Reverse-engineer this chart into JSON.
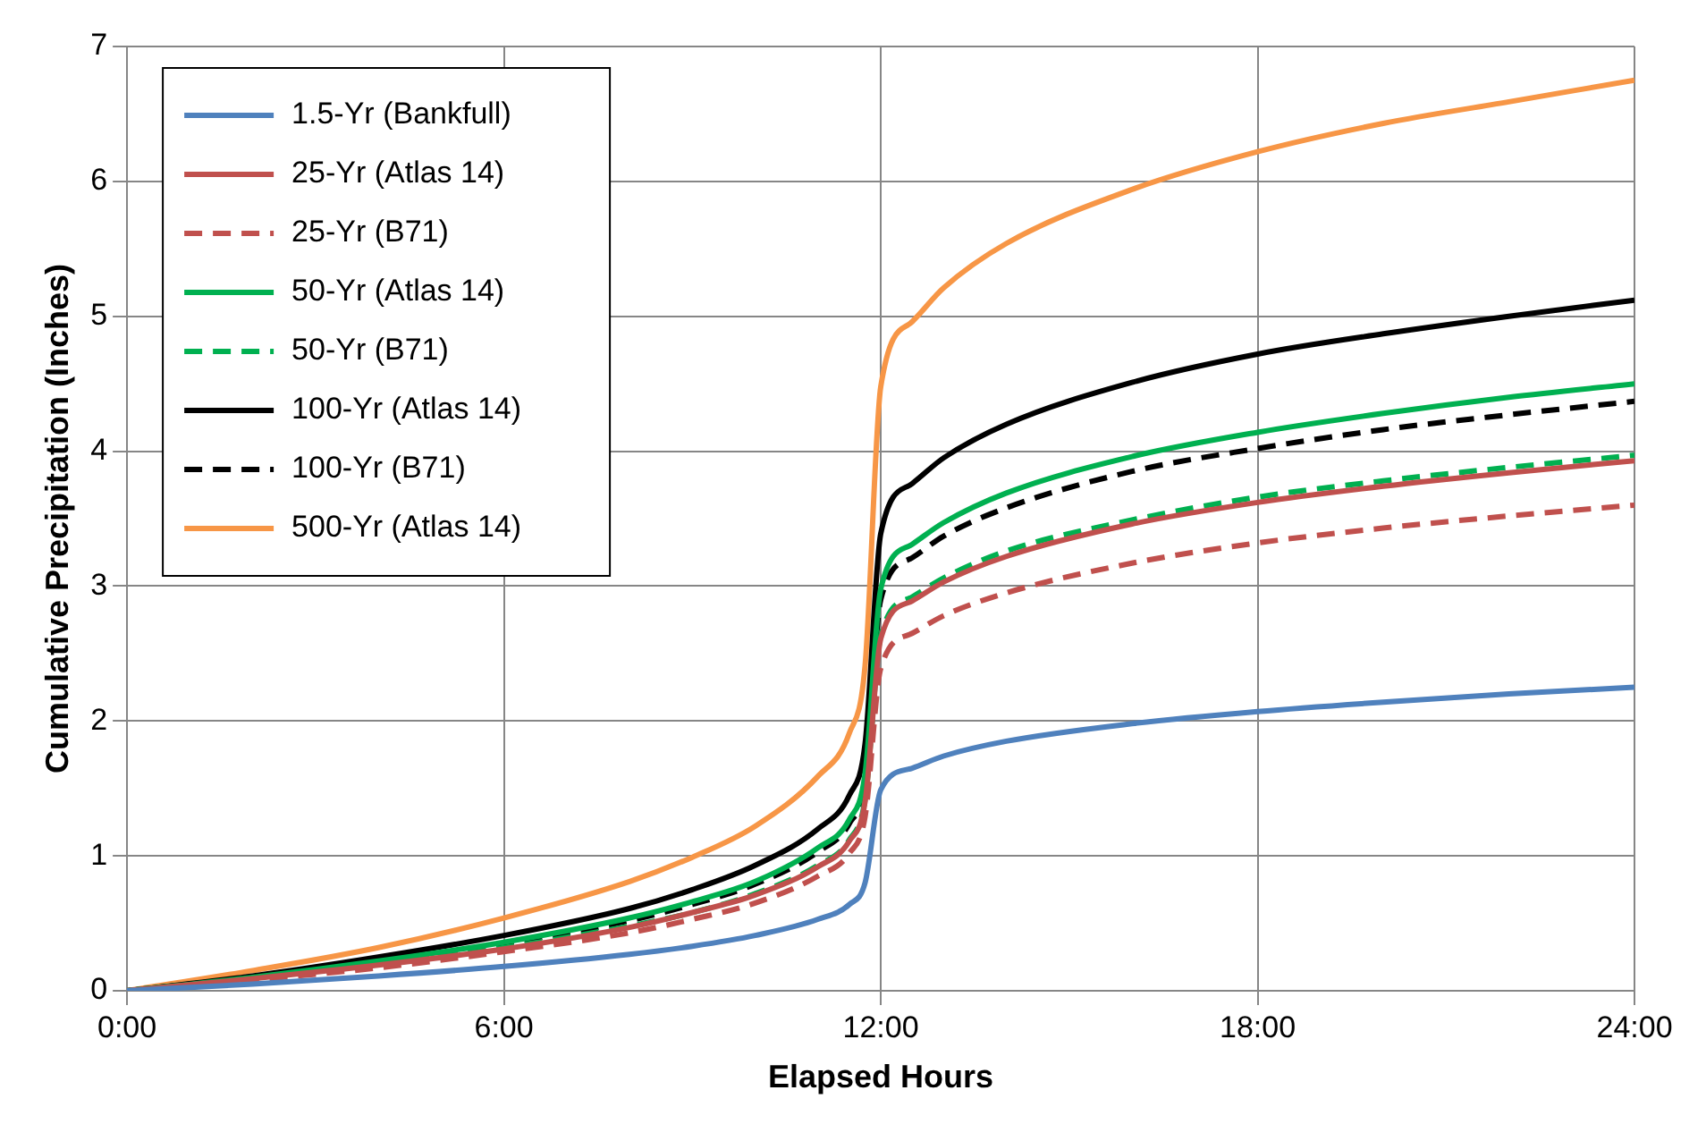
{
  "chart_data": {
    "type": "line",
    "xlabel": "Elapsed Hours",
    "ylabel": "Cumulative Precipitation (Inches)",
    "x": [
      0,
      2,
      4,
      6,
      8,
      9,
      10,
      11,
      11.5,
      11.75,
      12,
      12.5,
      13,
      14,
      16,
      18,
      20,
      22,
      24
    ],
    "xlim": [
      0,
      24
    ],
    "xticks": [
      {
        "value": 0,
        "label": "0:00"
      },
      {
        "value": 6,
        "label": "6:00"
      },
      {
        "value": 12,
        "label": "12:00"
      },
      {
        "value": 18,
        "label": "18:00"
      },
      {
        "value": 24,
        "label": "24:00"
      }
    ],
    "ylim": [
      0,
      7
    ],
    "yticks": [
      0,
      1,
      2,
      3,
      4,
      5,
      6,
      7
    ],
    "grid": true,
    "legend": "top left",
    "marker": "none",
    "series": [
      {
        "name": "1.5-Yr (Bankfull)",
        "color": "#4f81bd",
        "line_style": "solid",
        "values": [
          0,
          0.05,
          0.11,
          0.18,
          0.27,
          0.33,
          0.41,
          0.53,
          0.64,
          0.8,
          1.49,
          1.65,
          1.74,
          1.85,
          1.98,
          2.07,
          2.14,
          2.2,
          2.25
        ]
      },
      {
        "name": "25-Yr (Atlas 14)",
        "color": "#c0504d",
        "line_style": "solid",
        "values": [
          0,
          0.09,
          0.19,
          0.31,
          0.47,
          0.58,
          0.71,
          0.92,
          1.11,
          1.4,
          2.61,
          2.89,
          3.03,
          3.22,
          3.46,
          3.62,
          3.74,
          3.84,
          3.93
        ]
      },
      {
        "name": "25-Yr (B71)",
        "color": "#c0504d",
        "line_style": "dashed",
        "values": [
          0,
          0.08,
          0.17,
          0.29,
          0.43,
          0.53,
          0.65,
          0.85,
          1.02,
          1.29,
          2.39,
          2.65,
          2.78,
          2.95,
          3.17,
          3.32,
          3.43,
          3.52,
          3.6
        ]
      },
      {
        "name": "50-Yr (Atlas 14)",
        "color": "#00b050",
        "line_style": "solid",
        "values": [
          0,
          0.1,
          0.22,
          0.36,
          0.54,
          0.66,
          0.81,
          1.06,
          1.27,
          1.61,
          2.98,
          3.31,
          3.47,
          3.69,
          3.96,
          4.14,
          4.28,
          4.4,
          4.5
        ]
      },
      {
        "name": "50-Yr (B71)",
        "color": "#00b050",
        "line_style": "dashed",
        "values": [
          0,
          0.09,
          0.19,
          0.32,
          0.48,
          0.58,
          0.72,
          0.93,
          1.12,
          1.42,
          2.63,
          2.92,
          3.06,
          3.26,
          3.49,
          3.66,
          3.78,
          3.88,
          3.97
        ]
      },
      {
        "name": "100-Yr (Atlas 14)",
        "color": "#000000",
        "line_style": "solid",
        "values": [
          0,
          0.11,
          0.25,
          0.41,
          0.61,
          0.75,
          0.93,
          1.2,
          1.45,
          1.83,
          3.39,
          3.76,
          3.95,
          4.2,
          4.51,
          4.72,
          4.87,
          5,
          5.12
        ]
      },
      {
        "name": "100-Yr (B71)",
        "color": "#000000",
        "line_style": "dashed",
        "values": [
          0,
          0.1,
          0.21,
          0.35,
          0.52,
          0.64,
          0.79,
          1.03,
          1.24,
          1.56,
          2.9,
          3.21,
          3.37,
          3.58,
          3.85,
          4.02,
          4.16,
          4.27,
          4.37
        ]
      },
      {
        "name": "500-Yr (Atlas 14)",
        "color": "#f79646",
        "line_style": "solid",
        "values": [
          0,
          0.15,
          0.32,
          0.54,
          0.81,
          0.99,
          1.22,
          1.59,
          1.91,
          2.41,
          4.48,
          4.96,
          5.21,
          5.54,
          5.94,
          6.22,
          6.43,
          6.59,
          6.75
        ]
      }
    ]
  }
}
